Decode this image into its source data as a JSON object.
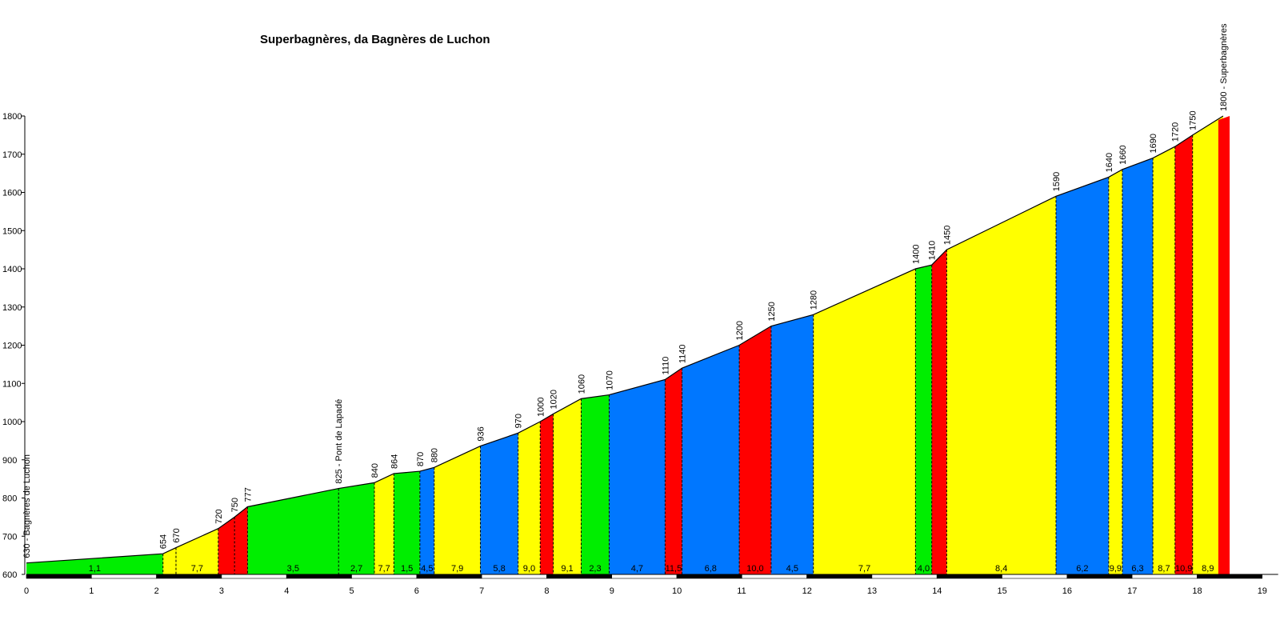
{
  "chart_data": {
    "type": "area",
    "title": "Superbagnères, da Bagnères de Luchon",
    "xlabel": "",
    "ylabel": "",
    "xlim": [
      0,
      19
    ],
    "ylim": [
      600,
      1800
    ],
    "x_ticks": [
      0,
      1,
      2,
      3,
      4,
      5,
      6,
      7,
      8,
      9,
      10,
      11,
      12,
      13,
      14,
      15,
      16,
      17,
      18,
      19
    ],
    "y_ticks": [
      600,
      700,
      800,
      900,
      1000,
      1100,
      1200,
      1300,
      1400,
      1500,
      1600,
      1700,
      1800
    ],
    "points": [
      {
        "km": 0.0,
        "alt": 630,
        "label": "630 - Bagnères de Luchon"
      },
      {
        "km": 2.1,
        "alt": 654,
        "label": "654"
      },
      {
        "km": 2.3,
        "alt": 670,
        "label": "670"
      },
      {
        "km": 2.95,
        "alt": 720,
        "label": "720"
      },
      {
        "km": 3.2,
        "alt": 750,
        "label": "750"
      },
      {
        "km": 3.4,
        "alt": 777,
        "label": "777"
      },
      {
        "km": 4.8,
        "alt": 825,
        "label": "825 - Pont de Lapadé"
      },
      {
        "km": 5.35,
        "alt": 840,
        "label": "840"
      },
      {
        "km": 5.65,
        "alt": 864,
        "label": "864"
      },
      {
        "km": 6.05,
        "alt": 870,
        "label": "870"
      },
      {
        "km": 6.27,
        "alt": 880,
        "label": "880"
      },
      {
        "km": 6.98,
        "alt": 936,
        "label": "936"
      },
      {
        "km": 7.56,
        "alt": 970,
        "label": "970"
      },
      {
        "km": 7.9,
        "alt": 1000,
        "label": "1000"
      },
      {
        "km": 8.1,
        "alt": 1020,
        "label": "1020"
      },
      {
        "km": 8.53,
        "alt": 1060,
        "label": "1060"
      },
      {
        "km": 8.96,
        "alt": 1070,
        "label": "1070"
      },
      {
        "km": 9.82,
        "alt": 1110,
        "label": "1110"
      },
      {
        "km": 10.08,
        "alt": 1140,
        "label": "1140"
      },
      {
        "km": 10.96,
        "alt": 1200,
        "label": "1200"
      },
      {
        "km": 11.45,
        "alt": 1250,
        "label": "1250"
      },
      {
        "km": 12.1,
        "alt": 1280,
        "label": "1280"
      },
      {
        "km": 13.67,
        "alt": 1400,
        "label": "1400"
      },
      {
        "km": 13.92,
        "alt": 1410,
        "label": "1410"
      },
      {
        "km": 14.15,
        "alt": 1450,
        "label": "1450"
      },
      {
        "km": 15.83,
        "alt": 1590,
        "label": "1590"
      },
      {
        "km": 16.64,
        "alt": 1640,
        "label": "1640"
      },
      {
        "km": 16.85,
        "alt": 1660,
        "label": "1660"
      },
      {
        "km": 17.32,
        "alt": 1690,
        "label": "1690"
      },
      {
        "km": 17.66,
        "alt": 1720,
        "label": "1720"
      },
      {
        "km": 17.93,
        "alt": 1750,
        "label": "1750"
      },
      {
        "km": 18.4,
        "alt": 1800,
        "label": "1800 - Superbagnères"
      }
    ],
    "segments": [
      {
        "grade": "1,1",
        "color": "#00ee00"
      },
      {
        "grade": "",
        "color": "#ffff00"
      },
      {
        "grade": "7,7",
        "color": "#ffff00"
      },
      {
        "grade": "",
        "color": "#ff0000"
      },
      {
        "grade": "",
        "color": "#ff0000"
      },
      {
        "grade": "3,5",
        "color": "#00ee00"
      },
      {
        "grade": "2,7",
        "color": "#00ee00"
      },
      {
        "grade": "7,7",
        "color": "#ffff00"
      },
      {
        "grade": "1,5",
        "color": "#00ee00"
      },
      {
        "grade": "4,5",
        "color": "#0077ff"
      },
      {
        "grade": "7,9",
        "color": "#ffff00"
      },
      {
        "grade": "5,8",
        "color": "#0077ff"
      },
      {
        "grade": "9,0",
        "color": "#ffff00"
      },
      {
        "grade": "",
        "color": "#ff0000"
      },
      {
        "grade": "9,1",
        "color": "#ffff00"
      },
      {
        "grade": "2,3",
        "color": "#00ee00"
      },
      {
        "grade": "4,7",
        "color": "#0077ff"
      },
      {
        "grade": "11,5",
        "color": "#ff0000"
      },
      {
        "grade": "6,8",
        "color": "#0077ff"
      },
      {
        "grade": "10,0",
        "color": "#ff0000"
      },
      {
        "grade": "4,5",
        "color": "#0077ff"
      },
      {
        "grade": "7,7",
        "color": "#ffff00"
      },
      {
        "grade": "4,0",
        "color": "#00ee00"
      },
      {
        "grade": "",
        "color": "#ff0000"
      },
      {
        "grade": "8,4",
        "color": "#ffff00"
      },
      {
        "grade": "6,2",
        "color": "#0077ff"
      },
      {
        "grade": "9,9",
        "color": "#ffff00"
      },
      {
        "grade": "6,3",
        "color": "#0077ff"
      },
      {
        "grade": "8,7",
        "color": "#ffff00"
      },
      {
        "grade": "10,9",
        "color": "#ff0000"
      },
      {
        "grade": "8,9",
        "color": "#ffff00"
      }
    ],
    "trailing_segment_color": "#ff0000",
    "trailing_segment_end_km": 18.5,
    "grid": false,
    "legend": "none"
  }
}
